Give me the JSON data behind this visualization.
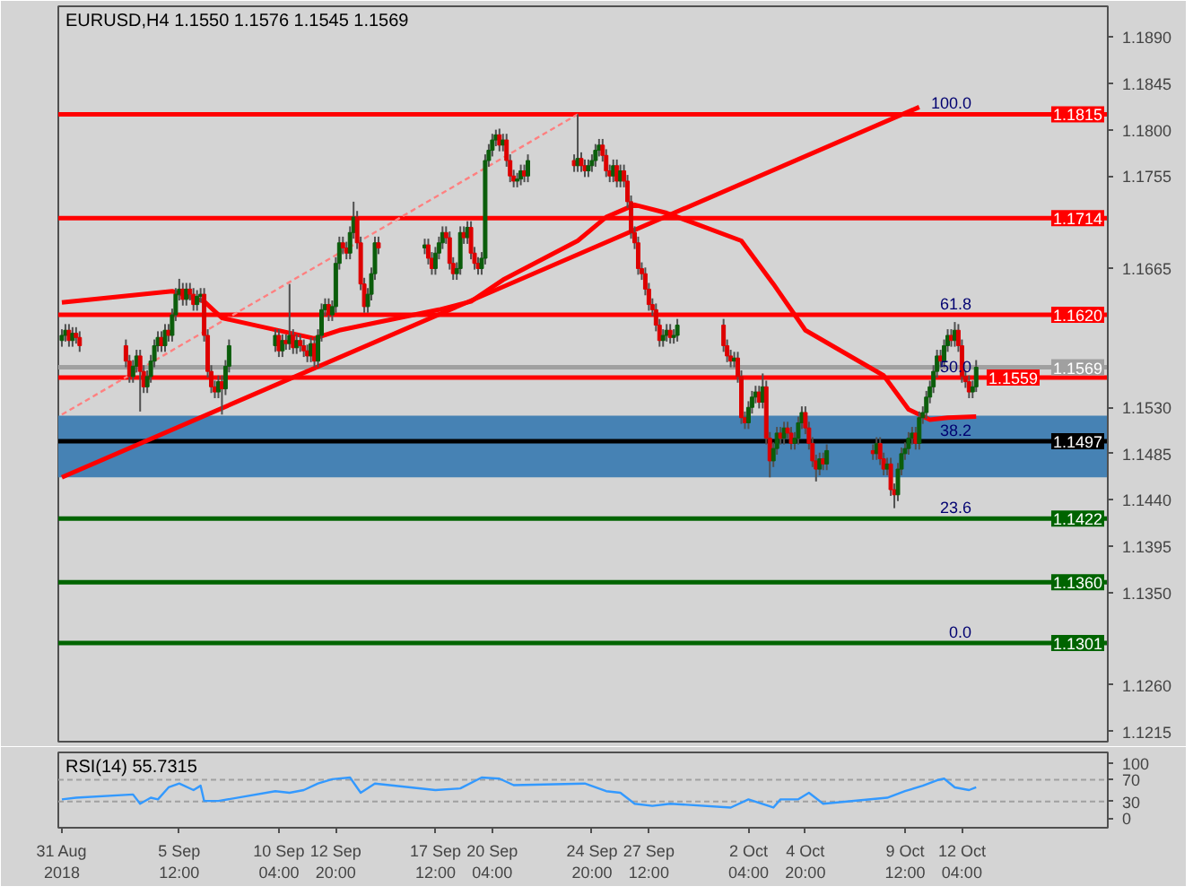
{
  "chart_data": [
    {
      "type": "candlestick",
      "title": "EURUSD,H4 1.1550 1.1576 1.1545 1.1569",
      "x": [
        "2018-08-31T00:00",
        "2018-08-31T04:00",
        "2018-08-31T08:00",
        "2018-08-31T12:00",
        "2018-08-31T16:00",
        "2018-08-31T20:00",
        "2018-09-03T00:00",
        "2018-09-03T04:00",
        "2018-09-03T08:00",
        "2018-09-03T12:00",
        "2018-09-03T16:00",
        "2018-09-03T20:00",
        "2018-09-04T00:00",
        "2018-09-04T04:00",
        "2018-09-04T08:00",
        "2018-09-04T12:00",
        "2018-09-04T16:00",
        "2018-09-04T20:00",
        "2018-09-05T00:00",
        "2018-09-05T04:00",
        "2018-09-05T08:00",
        "2018-09-05T12:00",
        "2018-09-05T16:00",
        "2018-09-05T20:00",
        "2018-09-06T00:00",
        "2018-09-06T04:00",
        "2018-09-06T08:00",
        "2018-09-06T12:00",
        "2018-09-06T16:00",
        "2018-09-06T20:00",
        "2018-09-07T00:00",
        "2018-09-07T04:00",
        "2018-09-07T08:00",
        "2018-09-07T12:00",
        "2018-09-07T16:00",
        "2018-09-07T20:00",
        "2018-09-10T00:00",
        "2018-09-10T04:00",
        "2018-09-10T08:00",
        "2018-09-10T12:00",
        "2018-09-10T16:00",
        "2018-09-10T20:00",
        "2018-09-11T00:00",
        "2018-09-11T04:00",
        "2018-09-11T08:00",
        "2018-09-11T12:00",
        "2018-09-11T16:00",
        "2018-09-11T20:00",
        "2018-09-12T00:00",
        "2018-09-12T04:00",
        "2018-09-12T08:00",
        "2018-09-12T12:00",
        "2018-09-12T16:00",
        "2018-09-12T20:00",
        "2018-09-13T00:00",
        "2018-09-13T04:00",
        "2018-09-13T08:00",
        "2018-09-13T12:00",
        "2018-09-13T16:00",
        "2018-09-13T20:00",
        "2018-09-14T00:00",
        "2018-09-14T04:00",
        "2018-09-14T08:00",
        "2018-09-14T12:00",
        "2018-09-14T16:00",
        "2018-09-14T20:00",
        "2018-09-17T00:00",
        "2018-09-17T04:00",
        "2018-09-17T08:00",
        "2018-09-17T12:00",
        "2018-09-17T16:00",
        "2018-09-17T20:00",
        "2018-09-18T00:00",
        "2018-09-18T04:00",
        "2018-09-18T08:00",
        "2018-09-18T12:00",
        "2018-09-18T16:00",
        "2018-09-18T20:00",
        "2018-09-19T00:00",
        "2018-09-19T04:00",
        "2018-09-19T08:00",
        "2018-09-19T12:00",
        "2018-09-19T16:00",
        "2018-09-19T20:00",
        "2018-09-20T00:00",
        "2018-09-20T04:00",
        "2018-09-20T08:00",
        "2018-09-20T12:00",
        "2018-09-20T16:00",
        "2018-09-20T20:00",
        "2018-09-21T00:00",
        "2018-09-21T04:00",
        "2018-09-21T08:00",
        "2018-09-21T12:00",
        "2018-09-21T16:00",
        "2018-09-21T20:00",
        "2018-09-24T00:00",
        "2018-09-24T04:00",
        "2018-09-24T08:00",
        "2018-09-24T12:00",
        "2018-09-24T16:00",
        "2018-09-24T20:00",
        "2018-09-25T00:00",
        "2018-09-25T04:00",
        "2018-09-25T08:00",
        "2018-09-25T12:00",
        "2018-09-25T16:00",
        "2018-09-25T20:00",
        "2018-09-26T00:00",
        "2018-09-26T04:00",
        "2018-09-26T08:00",
        "2018-09-26T12:00",
        "2018-09-26T16:00",
        "2018-09-26T20:00",
        "2018-09-27T00:00",
        "2018-09-27T04:00",
        "2018-09-27T08:00",
        "2018-09-27T12:00",
        "2018-09-27T16:00",
        "2018-09-27T20:00",
        "2018-09-28T00:00",
        "2018-09-28T04:00",
        "2018-09-28T08:00",
        "2018-09-28T12:00",
        "2018-09-28T16:00",
        "2018-09-28T20:00",
        "2018-10-01T00:00",
        "2018-10-01T04:00",
        "2018-10-01T08:00",
        "2018-10-01T12:00",
        "2018-10-01T16:00",
        "2018-10-01T20:00",
        "2018-10-02T00:00",
        "2018-10-02T04:00",
        "2018-10-02T08:00",
        "2018-10-02T12:00",
        "2018-10-02T16:00",
        "2018-10-02T20:00",
        "2018-10-03T00:00",
        "2018-10-03T04:00",
        "2018-10-03T08:00",
        "2018-10-03T12:00",
        "2018-10-03T16:00",
        "2018-10-03T20:00",
        "2018-10-04T00:00",
        "2018-10-04T04:00",
        "2018-10-04T08:00",
        "2018-10-04T12:00",
        "2018-10-04T16:00",
        "2018-10-04T20:00",
        "2018-10-05T00:00",
        "2018-10-05T04:00",
        "2018-10-05T08:00",
        "2018-10-05T12:00",
        "2018-10-05T16:00",
        "2018-10-05T20:00",
        "2018-10-08T00:00",
        "2018-10-08T04:00",
        "2018-10-08T08:00",
        "2018-10-08T12:00",
        "2018-10-08T16:00",
        "2018-10-08T20:00",
        "2018-10-09T00:00",
        "2018-10-09T04:00",
        "2018-10-09T08:00",
        "2018-10-09T12:00",
        "2018-10-09T16:00",
        "2018-10-09T20:00",
        "2018-10-10T00:00",
        "2018-10-10T04:00",
        "2018-10-10T08:00",
        "2018-10-10T12:00",
        "2018-10-10T16:00",
        "2018-10-10T20:00",
        "2018-10-11T00:00",
        "2018-10-11T04:00",
        "2018-10-11T08:00",
        "2018-10-11T12:00",
        "2018-10-11T16:00",
        "2018-10-11T20:00",
        "2018-10-12T00:00",
        "2018-10-12T04:00",
        "2018-10-12T08:00",
        "2018-10-12T12:00",
        "2018-10-12T16:00",
        "2018-10-12T20:00"
      ],
      "ohlc": [
        [
          1.1595,
          1.1606,
          1.1589,
          1.16
        ],
        [
          1.16,
          1.1611,
          1.1594,
          1.1605
        ],
        [
          1.1605,
          1.1611,
          1.1589,
          1.1595
        ],
        [
          1.1595,
          1.1608,
          1.1589,
          1.1602
        ],
        [
          1.1602,
          1.1608,
          1.1592,
          1.1598
        ],
        [
          1.1598,
          1.1604,
          1.1584,
          1.159
        ],
        [
          1.159,
          1.1596,
          1.1569,
          1.1575
        ],
        [
          1.1575,
          1.1581,
          1.1554,
          1.156
        ],
        [
          1.156,
          1.1576,
          1.1554,
          1.157
        ],
        [
          1.157,
          1.1586,
          1.1564,
          1.158
        ],
        [
          1.158,
          1.1586,
          1.1526,
          1.1565
        ],
        [
          1.1565,
          1.1571,
          1.1544,
          1.155
        ],
        [
          1.155,
          1.1566,
          1.1544,
          1.156
        ],
        [
          1.156,
          1.1581,
          1.1554,
          1.1575
        ],
        [
          1.1575,
          1.1596,
          1.1569,
          1.159
        ],
        [
          1.159,
          1.1604,
          1.1584,
          1.1598
        ],
        [
          1.1598,
          1.1604,
          1.1584,
          1.159
        ],
        [
          1.159,
          1.1611,
          1.1584,
          1.1605
        ],
        [
          1.1605,
          1.1611,
          1.1594,
          1.16
        ],
        [
          1.16,
          1.1626,
          1.1594,
          1.162
        ],
        [
          1.162,
          1.1646,
          1.1614,
          1.164
        ],
        [
          1.164,
          1.1655,
          1.1634,
          1.1645
        ],
        [
          1.1645,
          1.1651,
          1.1629,
          1.1635
        ],
        [
          1.1635,
          1.1651,
          1.1629,
          1.1645
        ],
        [
          1.1645,
          1.1651,
          1.1634,
          1.164
        ],
        [
          1.164,
          1.1646,
          1.1624,
          1.163
        ],
        [
          1.163,
          1.1644,
          1.1624,
          1.1638
        ],
        [
          1.1638,
          1.1646,
          1.1632,
          1.164
        ],
        [
          1.164,
          1.1646,
          1.1594,
          1.16
        ],
        [
          1.16,
          1.1606,
          1.1559,
          1.1565
        ],
        [
          1.1565,
          1.1571,
          1.1544,
          1.155
        ],
        [
          1.155,
          1.1556,
          1.1539,
          1.1545
        ],
        [
          1.1545,
          1.1561,
          1.1539,
          1.1555
        ],
        [
          1.1555,
          1.1561,
          1.1523,
          1.1548
        ],
        [
          1.1548,
          1.1576,
          1.1542,
          1.157
        ],
        [
          1.157,
          1.1596,
          1.1564,
          1.159
        ],
        [
          1.159,
          1.1606,
          1.1584,
          1.16
        ],
        [
          1.16,
          1.1606,
          1.1579,
          1.1585
        ],
        [
          1.1585,
          1.1601,
          1.1579,
          1.1595
        ],
        [
          1.1595,
          1.1601,
          1.1586,
          1.1592
        ],
        [
          1.1592,
          1.165,
          1.1586,
          1.16
        ],
        [
          1.16,
          1.1606,
          1.1582,
          1.1588
        ],
        [
          1.1588,
          1.1601,
          1.1582,
          1.1595
        ],
        [
          1.1595,
          1.1601,
          1.1584,
          1.159
        ],
        [
          1.159,
          1.1596,
          1.1579,
          1.1585
        ],
        [
          1.1585,
          1.1591,
          1.1574,
          1.158
        ],
        [
          1.158,
          1.1598,
          1.1574,
          1.1592
        ],
        [
          1.1592,
          1.1598,
          1.1569,
          1.1575
        ],
        [
          1.1575,
          1.1606,
          1.1569,
          1.16
        ],
        [
          1.16,
          1.1631,
          1.1594,
          1.1625
        ],
        [
          1.1625,
          1.1636,
          1.1619,
          1.163
        ],
        [
          1.163,
          1.1636,
          1.1614,
          1.162
        ],
        [
          1.162,
          1.1634,
          1.1614,
          1.1628
        ],
        [
          1.1628,
          1.1676,
          1.1622,
          1.167
        ],
        [
          1.167,
          1.1696,
          1.1664,
          1.169
        ],
        [
          1.169,
          1.1696,
          1.1679,
          1.1685
        ],
        [
          1.1685,
          1.1691,
          1.1674,
          1.168
        ],
        [
          1.168,
          1.1706,
          1.1674,
          1.17
        ],
        [
          1.17,
          1.173,
          1.1694,
          1.1715
        ],
        [
          1.1715,
          1.1721,
          1.1684,
          1.169
        ],
        [
          1.169,
          1.1696,
          1.1644,
          1.165
        ],
        [
          1.165,
          1.1656,
          1.1622,
          1.1628
        ],
        [
          1.1628,
          1.1646,
          1.1622,
          1.164
        ],
        [
          1.164,
          1.1666,
          1.1634,
          1.166
        ],
        [
          1.166,
          1.1696,
          1.1654,
          1.169
        ],
        [
          1.169,
          1.1696,
          1.1679,
          1.1685
        ],
        [
          1.1685,
          1.1694,
          1.1679,
          1.1688
        ],
        [
          1.1688,
          1.1694,
          1.1669,
          1.1675
        ],
        [
          1.1675,
          1.1681,
          1.1659,
          1.1665
        ],
        [
          1.1665,
          1.1686,
          1.1659,
          1.168
        ],
        [
          1.168,
          1.1696,
          1.1674,
          1.169
        ],
        [
          1.169,
          1.1706,
          1.1684,
          1.17
        ],
        [
          1.17,
          1.1706,
          1.1689,
          1.1695
        ],
        [
          1.1695,
          1.1701,
          1.1664,
          1.167
        ],
        [
          1.167,
          1.1676,
          1.1654,
          1.166
        ],
        [
          1.166,
          1.1671,
          1.1654,
          1.1665
        ],
        [
          1.1665,
          1.1706,
          1.1659,
          1.17
        ],
        [
          1.17,
          1.1706,
          1.1689,
          1.1695
        ],
        [
          1.1695,
          1.1711,
          1.1689,
          1.1705
        ],
        [
          1.1705,
          1.1711,
          1.1674,
          1.168
        ],
        [
          1.168,
          1.1686,
          1.1664,
          1.167
        ],
        [
          1.167,
          1.1676,
          1.1659,
          1.1665
        ],
        [
          1.1665,
          1.1681,
          1.1659,
          1.1675
        ],
        [
          1.1675,
          1.1776,
          1.1669,
          1.177
        ],
        [
          1.177,
          1.1786,
          1.1764,
          1.178
        ],
        [
          1.178,
          1.1796,
          1.1774,
          1.179
        ],
        [
          1.179,
          1.18,
          1.1784,
          1.1795
        ],
        [
          1.1795,
          1.1801,
          1.1779,
          1.1785
        ],
        [
          1.1785,
          1.1796,
          1.1779,
          1.179
        ],
        [
          1.179,
          1.1796,
          1.1764,
          1.177
        ],
        [
          1.177,
          1.1776,
          1.1749,
          1.1755
        ],
        [
          1.1755,
          1.1761,
          1.1744,
          1.175
        ],
        [
          1.175,
          1.1758,
          1.1744,
          1.1752
        ],
        [
          1.1752,
          1.1766,
          1.1746,
          1.176
        ],
        [
          1.176,
          1.1766,
          1.1749,
          1.1755
        ],
        [
          1.1755,
          1.1776,
          1.1749,
          1.177
        ],
        [
          1.177,
          1.1776,
          1.1759,
          1.1765
        ],
        [
          1.1765,
          1.1815,
          1.1759,
          1.1772
        ],
        [
          1.1772,
          1.1778,
          1.1759,
          1.1765
        ],
        [
          1.1765,
          1.1771,
          1.1754,
          1.176
        ],
        [
          1.176,
          1.1771,
          1.1754,
          1.1765
        ],
        [
          1.1765,
          1.1776,
          1.1759,
          1.177
        ],
        [
          1.177,
          1.1786,
          1.1764,
          1.178
        ],
        [
          1.178,
          1.1791,
          1.1774,
          1.1785
        ],
        [
          1.1785,
          1.1791,
          1.1769,
          1.1775
        ],
        [
          1.1775,
          1.1781,
          1.1754,
          1.176
        ],
        [
          1.176,
          1.1766,
          1.1749,
          1.1755
        ],
        [
          1.1755,
          1.1771,
          1.1749,
          1.1765
        ],
        [
          1.1765,
          1.1771,
          1.1744,
          1.175
        ],
        [
          1.175,
          1.1766,
          1.1744,
          1.176
        ],
        [
          1.176,
          1.1766,
          1.1744,
          1.175
        ],
        [
          1.175,
          1.1756,
          1.1724,
          1.173
        ],
        [
          1.173,
          1.1736,
          1.1694,
          1.17
        ],
        [
          1.17,
          1.1706,
          1.1684,
          1.169
        ],
        [
          1.169,
          1.1696,
          1.1659,
          1.1665
        ],
        [
          1.1665,
          1.1671,
          1.1654,
          1.166
        ],
        [
          1.166,
          1.1666,
          1.1639,
          1.1645
        ],
        [
          1.1645,
          1.1651,
          1.1624,
          1.163
        ],
        [
          1.163,
          1.1636,
          1.1619,
          1.1625
        ],
        [
          1.1625,
          1.1631,
          1.1604,
          1.161
        ],
        [
          1.161,
          1.1616,
          1.1589,
          1.1595
        ],
        [
          1.1595,
          1.1606,
          1.1589,
          1.16
        ],
        [
          1.16,
          1.1611,
          1.1594,
          1.1605
        ],
        [
          1.1605,
          1.1611,
          1.1592,
          1.1598
        ],
        [
          1.1598,
          1.1606,
          1.1592,
          1.16
        ],
        [
          1.16,
          1.1616,
          1.1594,
          1.161
        ],
        [
          1.161,
          1.1616,
          1.1584,
          1.159
        ],
        [
          1.159,
          1.1596,
          1.1574,
          1.158
        ],
        [
          1.158,
          1.1586,
          1.1569,
          1.1575
        ],
        [
          1.1575,
          1.1584,
          1.1569,
          1.1578
        ],
        [
          1.1578,
          1.1584,
          1.1554,
          1.156
        ],
        [
          1.156,
          1.1566,
          1.1514,
          1.152
        ],
        [
          1.152,
          1.1526,
          1.1509,
          1.1515
        ],
        [
          1.1515,
          1.1536,
          1.1509,
          1.153
        ],
        [
          1.153,
          1.1546,
          1.1524,
          1.154
        ],
        [
          1.154,
          1.1551,
          1.1534,
          1.1545
        ],
        [
          1.1545,
          1.1551,
          1.1529,
          1.1535
        ],
        [
          1.1535,
          1.1563,
          1.1529,
          1.155
        ],
        [
          1.155,
          1.1556,
          1.1494,
          1.15
        ],
        [
          1.15,
          1.1506,
          1.1462,
          1.1478
        ],
        [
          1.1478,
          1.1496,
          1.1472,
          1.149
        ],
        [
          1.149,
          1.1511,
          1.1484,
          1.1505
        ],
        [
          1.1505,
          1.1511,
          1.1494,
          1.15
        ],
        [
          1.15,
          1.1516,
          1.1494,
          1.151
        ],
        [
          1.151,
          1.1516,
          1.1499,
          1.1505
        ],
        [
          1.1505,
          1.1511,
          1.1489,
          1.1495
        ],
        [
          1.1495,
          1.1506,
          1.1489,
          1.15
        ],
        [
          1.15,
          1.1521,
          1.1494,
          1.1515
        ],
        [
          1.1515,
          1.1531,
          1.1509,
          1.1525
        ],
        [
          1.1525,
          1.1531,
          1.1504,
          1.151
        ],
        [
          1.151,
          1.1516,
          1.1489,
          1.1495
        ],
        [
          1.1495,
          1.1501,
          1.1472,
          1.1478
        ],
        [
          1.1478,
          1.1484,
          1.1458,
          1.147
        ],
        [
          1.147,
          1.1486,
          1.1464,
          1.148
        ],
        [
          1.148,
          1.1486,
          1.1469,
          1.1475
        ],
        [
          1.1475,
          1.1494,
          1.1469,
          1.1488
        ],
        [
          1.1488,
          1.1494,
          1.1479,
          1.1485
        ],
        [
          1.1485,
          1.1501,
          1.1479,
          1.1495
        ],
        [
          1.1495,
          1.1501,
          1.1474,
          1.148
        ],
        [
          1.148,
          1.1486,
          1.1464,
          1.147
        ],
        [
          1.147,
          1.1481,
          1.1464,
          1.1475
        ],
        [
          1.1475,
          1.1481,
          1.1444,
          1.145
        ],
        [
          1.145,
          1.1456,
          1.1432,
          1.1445
        ],
        [
          1.1445,
          1.1476,
          1.1439,
          1.147
        ],
        [
          1.147,
          1.1491,
          1.1464,
          1.1485
        ],
        [
          1.1485,
          1.1496,
          1.1479,
          1.149
        ],
        [
          1.149,
          1.1506,
          1.1484,
          1.15
        ],
        [
          1.15,
          1.1511,
          1.1494,
          1.1505
        ],
        [
          1.1505,
          1.1511,
          1.1489,
          1.1495
        ],
        [
          1.1495,
          1.1526,
          1.1489,
          1.152
        ],
        [
          1.152,
          1.1531,
          1.1514,
          1.1525
        ],
        [
          1.1525,
          1.1546,
          1.1519,
          1.154
        ],
        [
          1.154,
          1.1556,
          1.1534,
          1.155
        ],
        [
          1.155,
          1.1571,
          1.1544,
          1.1565
        ],
        [
          1.1565,
          1.1586,
          1.1559,
          1.158
        ],
        [
          1.158,
          1.1586,
          1.1569,
          1.1575
        ],
        [
          1.1575,
          1.1596,
          1.1569,
          1.159
        ],
        [
          1.159,
          1.1606,
          1.1584,
          1.16
        ],
        [
          1.16,
          1.1606,
          1.1589,
          1.1595
        ],
        [
          1.1595,
          1.1613,
          1.1589,
          1.1605
        ],
        [
          1.1605,
          1.1611,
          1.1584,
          1.159
        ],
        [
          1.159,
          1.1596,
          1.1554,
          1.156
        ],
        [
          1.156,
          1.1566,
          1.1549,
          1.1555
        ],
        [
          1.1555,
          1.1561,
          1.1539,
          1.1545
        ],
        [
          1.1545,
          1.1556,
          1.1539,
          1.155
        ],
        [
          1.155,
          1.1576,
          1.1545,
          1.1569
        ]
      ],
      "series": [
        {
          "type": "line",
          "x": [
            "2018-08-31T00:00",
            "2018-10-10T04:00"
          ],
          "values": [
            1.1462,
            1.1822
          ],
          "color": "#ff0000"
        },
        {
          "type": "line",
          "x": [
            "2018-08-31T00:00",
            "2018-09-24T04:00"
          ],
          "values": [
            1.1523,
            1.1815
          ],
          "color": "#ff8080",
          "line_style": "dashed"
        },
        {
          "type": "line",
          "x": [
            "2018-08-31T00:00",
            "2018-09-05T04:00",
            "2018-09-06T16:00",
            "2018-09-07T12:00",
            "2018-09-11T20:00",
            "2018-09-13T00:00",
            "2018-09-17T16:00",
            "2018-09-19T04:00",
            "2018-09-20T16:00",
            "2018-09-24T04:00",
            "2018-09-25T12:00",
            "2018-09-26T20:00",
            "2018-09-28T08:00",
            "2018-10-01T20:00",
            "2018-10-03T08:00",
            "2018-10-04T20:00",
            "2018-10-08T12:00",
            "2018-10-09T16:00",
            "2018-10-10T16:00",
            "2018-10-11T12:00",
            "2018-10-12T20:00"
          ],
          "values": [
            1.1632,
            1.1643,
            1.1633,
            1.1617,
            1.1597,
            1.1605,
            1.1625,
            1.1633,
            1.1654,
            1.1692,
            1.1715,
            1.1727,
            1.1719,
            1.1692,
            1.165,
            1.1605,
            1.1561,
            1.1528,
            1.1518,
            1.152,
            1.1521
          ],
          "color": "#ff0000"
        }
      ],
      "xlim": [
        "2018-08-30T20:00",
        "2018-10-19T00:00"
      ],
      "ylim": [
        1.1205,
        1.192
      ],
      "yticks": [
        {
          "value": 1.1215,
          "label": "1.1215"
        },
        {
          "value": 1.126,
          "label": "1.1260"
        },
        {
          "value": 1.135,
          "label": "1.1350"
        },
        {
          "value": 1.1395,
          "label": "1.1395"
        },
        {
          "value": 1.144,
          "label": "1.1440"
        },
        {
          "value": 1.1485,
          "label": "1.1485"
        },
        {
          "value": 1.153,
          "label": "1.1530"
        },
        {
          "value": 1.1665,
          "label": "1.1665"
        },
        {
          "value": 1.1755,
          "label": "1.1755"
        },
        {
          "value": 1.18,
          "label": "1.1800"
        },
        {
          "value": 1.1845,
          "label": "1.1845"
        },
        {
          "value": 1.189,
          "label": "1.1890"
        }
      ],
      "tick_labels": "y",
      "bands": [
        {
          "axis": "y",
          "from": 1.1462,
          "to": 1.1522,
          "color": "#4682b4"
        }
      ],
      "ref_lines": [
        {
          "axis": "y",
          "value": 1.1815,
          "label": "1.1815",
          "color": "#ff0000"
        },
        {
          "axis": "y",
          "value": 1.1714,
          "label": "1.1714",
          "color": "#ff0000"
        },
        {
          "axis": "y",
          "value": 1.162,
          "label": "1.1620",
          "color": "#ff0000"
        },
        {
          "axis": "y",
          "value": 1.1569,
          "label": "1.1569",
          "color": "#a0a0a0"
        },
        {
          "axis": "y",
          "value": 1.1559,
          "label": "1.1559",
          "color": "#ff0000"
        },
        {
          "axis": "y",
          "value": 1.1497,
          "label": "1.1497",
          "color": "#000000"
        },
        {
          "axis": "y",
          "value": 1.1422,
          "label": "1.1422",
          "color": "#006400"
        },
        {
          "axis": "y",
          "value": 1.136,
          "label": "1.1360",
          "color": "#006400"
        },
        {
          "axis": "y",
          "value": 1.1301,
          "label": "1.1301",
          "color": "#006400"
        }
      ],
      "annotations": [
        {
          "text": "100.0",
          "y": 1.1815
        },
        {
          "text": "61.8",
          "y": 1.162
        },
        {
          "text": "50.0",
          "y": 1.1559
        },
        {
          "text": "38.2",
          "y": 1.1497
        },
        {
          "text": "23.6",
          "y": 1.1422
        },
        {
          "text": "0.0",
          "y": 1.1301
        }
      ]
    },
    {
      "type": "line",
      "title": "RSI(14) 55.7315",
      "series": [
        {
          "color": "#3399ff",
          "x": [
            "2018-08-31T00:00",
            "2018-08-31T16:00",
            "2018-09-03T08:00",
            "2018-09-03T16:00",
            "2018-09-04T04:00",
            "2018-09-04T12:00",
            "2018-09-05T00:00",
            "2018-09-05T12:00",
            "2018-09-06T04:00",
            "2018-09-06T12:00",
            "2018-09-06T16:00",
            "2018-09-07T08:00",
            "2018-09-10T00:00",
            "2018-09-10T16:00",
            "2018-09-11T08:00",
            "2018-09-12T00:00",
            "2018-09-12T16:00",
            "2018-09-13T12:00",
            "2018-09-14T00:00",
            "2018-09-14T16:00",
            "2018-09-17T12:00",
            "2018-09-18T16:00",
            "2018-09-19T16:00",
            "2018-09-20T12:00",
            "2018-09-21T04:00",
            "2018-09-24T12:00",
            "2018-09-25T12:00",
            "2018-09-26T04:00",
            "2018-09-26T20:00",
            "2018-09-27T16:00",
            "2018-09-28T12:00",
            "2018-10-01T08:00",
            "2018-10-02T04:00",
            "2018-10-03T08:00",
            "2018-10-03T16:00",
            "2018-10-04T12:00",
            "2018-10-05T00:00",
            "2018-10-05T16:00",
            "2018-10-08T16:00",
            "2018-10-09T12:00",
            "2018-10-10T08:00",
            "2018-10-11T00:00",
            "2018-10-11T08:00",
            "2018-10-11T20:00",
            "2018-10-12T12:00",
            "2018-10-12T20:00"
          ],
          "values": [
            34,
            37,
            43,
            26,
            37,
            34,
            56,
            63,
            51,
            59,
            31,
            31,
            49,
            46,
            51,
            63,
            71,
            74,
            46,
            63,
            51,
            54,
            74,
            72,
            60,
            63,
            49,
            46,
            26,
            22,
            26,
            19,
            34,
            19,
            34,
            34,
            46,
            26,
            37,
            49,
            59,
            69,
            72,
            56,
            51,
            56
          ]
        }
      ],
      "xlim": [
        "2018-08-30T20:00",
        "2018-10-19T00:00"
      ],
      "xticks": [
        {
          "value": "2018-08-31T00:00",
          "label": "31 Aug 2018"
        },
        {
          "value": "2018-09-05T12:00",
          "label": "5 Sep 12:00"
        },
        {
          "value": "2018-09-10T04:00",
          "label": "10 Sep 04:00"
        },
        {
          "value": "2018-09-12T20:00",
          "label": "12 Sep 20:00"
        },
        {
          "value": "2018-09-17T12:00",
          "label": "17 Sep 12:00"
        },
        {
          "value": "2018-09-20T04:00",
          "label": "20 Sep 04:00"
        },
        {
          "value": "2018-09-24T20:00",
          "label": "24 Sep 20:00"
        },
        {
          "value": "2018-09-27T12:00",
          "label": "27 Sep 12:00"
        },
        {
          "value": "2018-10-02T04:00",
          "label": "2 Oct 04:00"
        },
        {
          "value": "2018-10-04T20:00",
          "label": "4 Oct 20:00"
        },
        {
          "value": "2018-10-09T12:00",
          "label": "9 Oct 12:00"
        },
        {
          "value": "2018-10-12T04:00",
          "label": "12 Oct 04:00"
        }
      ],
      "ylim": [
        -18,
        120
      ],
      "yticks": [
        0,
        30,
        70,
        100
      ],
      "ref_lines": [
        {
          "axis": "y",
          "value": 30,
          "color": "#a0a0a0",
          "line_style": "dashed"
        },
        {
          "axis": "y",
          "value": 70,
          "color": "#a0a0a0",
          "line_style": "dashed"
        }
      ]
    }
  ]
}
